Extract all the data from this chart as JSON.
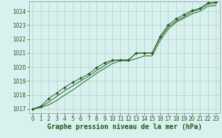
{
  "title": "Graphe pression niveau de la mer (hPa)",
  "bg_color": "#d8f0ee",
  "grid_color": "#b0d0cc",
  "line_color": "#1a5c1a",
  "marker_color": "#1a5c1a",
  "xlim": [
    -0.5,
    23.5
  ],
  "ylim": [
    1016.7,
    1024.7
  ],
  "yticks": [
    1017,
    1018,
    1019,
    1020,
    1021,
    1022,
    1023,
    1024
  ],
  "xticks": [
    0,
    1,
    2,
    3,
    4,
    5,
    6,
    7,
    8,
    9,
    10,
    11,
    12,
    13,
    14,
    15,
    16,
    17,
    18,
    19,
    20,
    21,
    22,
    23
  ],
  "series": [
    [
      1017.0,
      1017.1,
      1017.3,
      1017.6,
      1018.0,
      1018.35,
      1018.75,
      1019.15,
      1019.55,
      1019.9,
      1020.25,
      1020.45,
      1020.45,
      1020.6,
      1020.8,
      1020.8,
      1021.9,
      1022.7,
      1023.2,
      1023.5,
      1023.8,
      1024.0,
      1024.35,
      1024.4
    ],
    [
      1017.0,
      1017.15,
      1017.5,
      1017.9,
      1018.3,
      1018.65,
      1019.0,
      1019.35,
      1019.75,
      1020.1,
      1020.45,
      1020.5,
      1020.5,
      1021.0,
      1021.0,
      1021.0,
      1022.1,
      1022.85,
      1023.3,
      1023.6,
      1023.95,
      1024.15,
      1024.5,
      1024.55
    ],
    [
      1017.0,
      1017.2,
      1017.75,
      1018.15,
      1018.55,
      1018.9,
      1019.2,
      1019.5,
      1019.95,
      1020.3,
      1020.5,
      1020.5,
      1020.5,
      1021.0,
      1021.0,
      1021.0,
      1022.2,
      1023.0,
      1023.45,
      1023.75,
      1024.05,
      1024.2,
      1024.6,
      1024.65
    ]
  ],
  "title_fontsize": 7,
  "tick_fontsize": 5.5
}
